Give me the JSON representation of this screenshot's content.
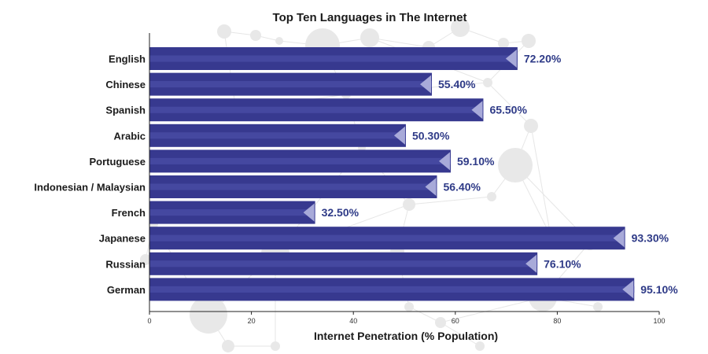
{
  "chart_data": {
    "type": "bar",
    "orientation": "horizontal",
    "title": "Top Ten Languages in The Internet",
    "xlabel": "Internet Penetration (% Population)",
    "ylabel": "",
    "categories": [
      "English",
      "Chinese",
      "Spanish",
      "Arabic",
      "Portuguese",
      "Indonesian / Malaysian",
      "French",
      "Japanese",
      "Russian",
      "German"
    ],
    "values": [
      72.2,
      55.4,
      65.5,
      50.3,
      59.1,
      56.4,
      32.5,
      93.3,
      76.1,
      95.1
    ],
    "value_labels": [
      "72.20%",
      "55.40%",
      "65.50%",
      "50.30%",
      "59.10%",
      "56.40%",
      "32.50%",
      "93.30%",
      "76.10%",
      "95.10%"
    ],
    "xlim": [
      0,
      100
    ],
    "xticks": [
      "0",
      "20",
      "40",
      "60",
      "80",
      "100"
    ],
    "grid": false,
    "legend": "none",
    "colors": {
      "bar": "#37398f",
      "bar_stripe": "#4548a0",
      "bar_tip": "#a8aad9",
      "value_text": "#2e3a87",
      "axis": "#222222",
      "background_network": "#e8e8e8"
    }
  }
}
